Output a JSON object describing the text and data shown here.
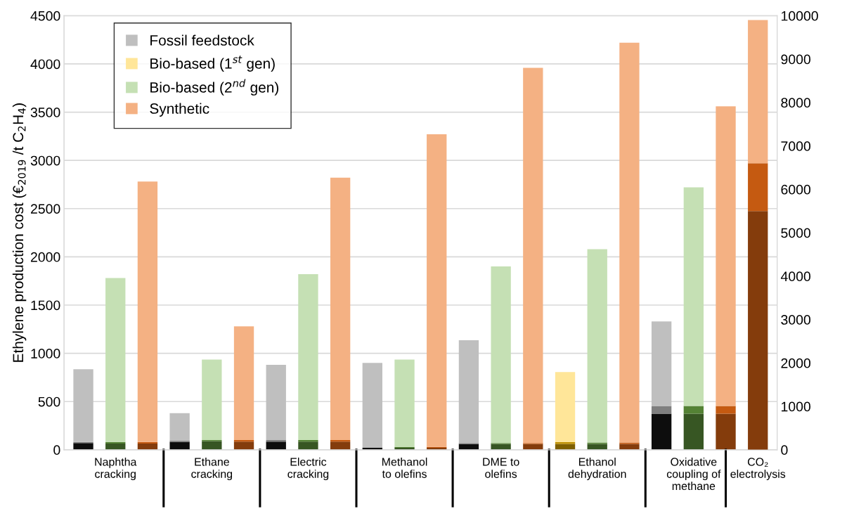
{
  "chart_data": {
    "type": "bar",
    "stacked": true,
    "ylabel": "Ethylene production cost (€$_{2019}$ /t C$_{2}$H$_{4}$)",
    "categories": [
      null,
      "Naphtha\ncracking",
      null,
      null,
      "Ethane\ncracking",
      null,
      null,
      "Electric\ncracking",
      null,
      null,
      "Methanol\nto olefins",
      null,
      null,
      "DME to\nolefins",
      null,
      null,
      "Ethanol\ndehydration",
      null,
      null,
      "Oxidative\ncoupling of\nmethane",
      null,
      "CO₂\nelectrolysis"
    ],
    "ylim": [
      0,
      4500
    ],
    "yticks": [
      0,
      500,
      1000,
      1500,
      2000,
      2500,
      3000,
      3500,
      4000,
      4500
    ],
    "y2lim": [
      0,
      10000
    ],
    "y2ticks": [
      0,
      1000,
      2000,
      3000,
      4000,
      5000,
      6000,
      7000,
      8000,
      9000,
      10000
    ],
    "grid": "y",
    "legend": "top left",
    "series": [
      {
        "color": "#0d0d0d",
        "values": [
          70,
          null,
          null,
          80,
          null,
          null,
          85,
          null,
          null,
          20,
          null,
          null,
          60,
          null,
          null,
          null,
          null,
          null,
          375,
          null,
          null,
          null
        ]
      },
      {
        "color": "#7f7f7f",
        "values": [
          10,
          null,
          null,
          15,
          null,
          null,
          15,
          null,
          null,
          5,
          null,
          null,
          10,
          null,
          null,
          null,
          null,
          null,
          80,
          null,
          null,
          null
        ]
      },
      {
        "name": "Fossil feedstock",
        "color": "#bfbfbf",
        "values": [
          755,
          null,
          null,
          285,
          null,
          null,
          780,
          null,
          null,
          875,
          null,
          null,
          1065,
          null,
          null,
          null,
          null,
          null,
          875,
          null,
          null,
          null
        ]
      },
      {
        "color": "#7f6000",
        "values": [
          null,
          null,
          null,
          null,
          null,
          null,
          null,
          null,
          null,
          null,
          null,
          null,
          null,
          null,
          null,
          60,
          null,
          null,
          null,
          null,
          null,
          null
        ]
      },
      {
        "color": "#bf9000",
        "values": [
          null,
          null,
          null,
          null,
          null,
          null,
          null,
          null,
          null,
          null,
          null,
          null,
          null,
          null,
          null,
          20,
          null,
          null,
          null,
          null,
          null,
          null
        ]
      },
      {
        "name": "Bio-based (1$^{st}$ gen)",
        "color": "#ffe699",
        "values": [
          null,
          null,
          null,
          null,
          null,
          null,
          null,
          null,
          null,
          null,
          null,
          null,
          null,
          null,
          null,
          725,
          null,
          null,
          null,
          null,
          null,
          null
        ]
      },
      {
        "color": "#375623",
        "values": [
          null,
          65,
          null,
          null,
          90,
          null,
          null,
          85,
          null,
          null,
          20,
          null,
          null,
          60,
          null,
          null,
          60,
          null,
          null,
          375,
          null,
          null
        ]
      },
      {
        "color": "#548235",
        "values": [
          null,
          15,
          null,
          null,
          10,
          null,
          null,
          15,
          null,
          null,
          10,
          null,
          null,
          10,
          null,
          null,
          15,
          null,
          null,
          80,
          null,
          null
        ]
      },
      {
        "name": "Bio-based (2$^{nd}$ gen)",
        "color": "#c5e0b4",
        "values": [
          null,
          1700,
          null,
          null,
          835,
          null,
          null,
          1720,
          null,
          null,
          905,
          null,
          null,
          1830,
          null,
          null,
          2005,
          null,
          null,
          2265,
          null,
          null
        ]
      },
      {
        "color": "#843c0c",
        "values": [
          null,
          null,
          65,
          null,
          null,
          85,
          null,
          null,
          85,
          null,
          null,
          20,
          null,
          null,
          60,
          null,
          null,
          60,
          null,
          null,
          375,
          null
        ]
      },
      {
        "color": "#c55a11",
        "values": [
          null,
          null,
          15,
          null,
          null,
          15,
          null,
          null,
          15,
          null,
          null,
          10,
          null,
          null,
          10,
          null,
          null,
          15,
          null,
          null,
          80,
          null
        ]
      },
      {
        "name": "Synthetic",
        "color": "#f4b183",
        "values": [
          null,
          null,
          2700,
          null,
          null,
          1180,
          null,
          null,
          2720,
          null,
          null,
          3240,
          null,
          null,
          3890,
          null,
          null,
          4145,
          null,
          null,
          3105,
          null
        ]
      },
      {
        "axis": "y2",
        "color": "#843c0c",
        "values": [
          null,
          null,
          null,
          null,
          null,
          null,
          null,
          null,
          null,
          null,
          null,
          null,
          null,
          null,
          null,
          null,
          null,
          null,
          null,
          null,
          null,
          5500
        ]
      },
      {
        "axis": "y2",
        "color": "#c55a11",
        "values": [
          null,
          null,
          null,
          null,
          null,
          null,
          null,
          null,
          null,
          null,
          null,
          null,
          null,
          null,
          null,
          null,
          null,
          null,
          null,
          null,
          null,
          1100
        ]
      },
      {
        "axis": "y2",
        "color": "#f4b183",
        "values": [
          null,
          null,
          null,
          null,
          null,
          null,
          null,
          null,
          null,
          null,
          null,
          null,
          null,
          null,
          null,
          null,
          null,
          null,
          null,
          null,
          null,
          3300
        ]
      }
    ]
  }
}
